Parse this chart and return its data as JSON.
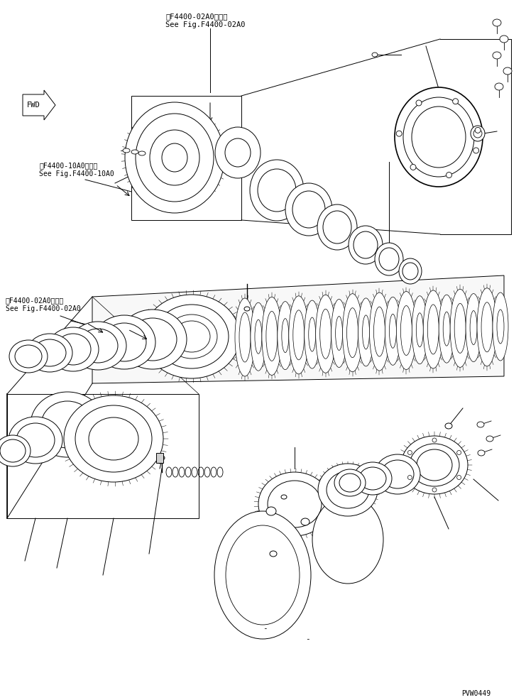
{
  "bg_color": "#ffffff",
  "line_color": "#000000",
  "title_text1": "第F4400-02A0図参照",
  "title_text2": "See Fig.F4400-02A0",
  "label1_text1": "第F4400-10A0図参照",
  "label1_text2": "See Fig.F4400-10A0",
  "label2_text1": "第F4400-02A0図参照",
  "label2_text2": "See Fig.F4400-02A0",
  "part_number": "PVW0449",
  "fig_width": 7.41,
  "fig_height": 9.86,
  "dpi": 100
}
